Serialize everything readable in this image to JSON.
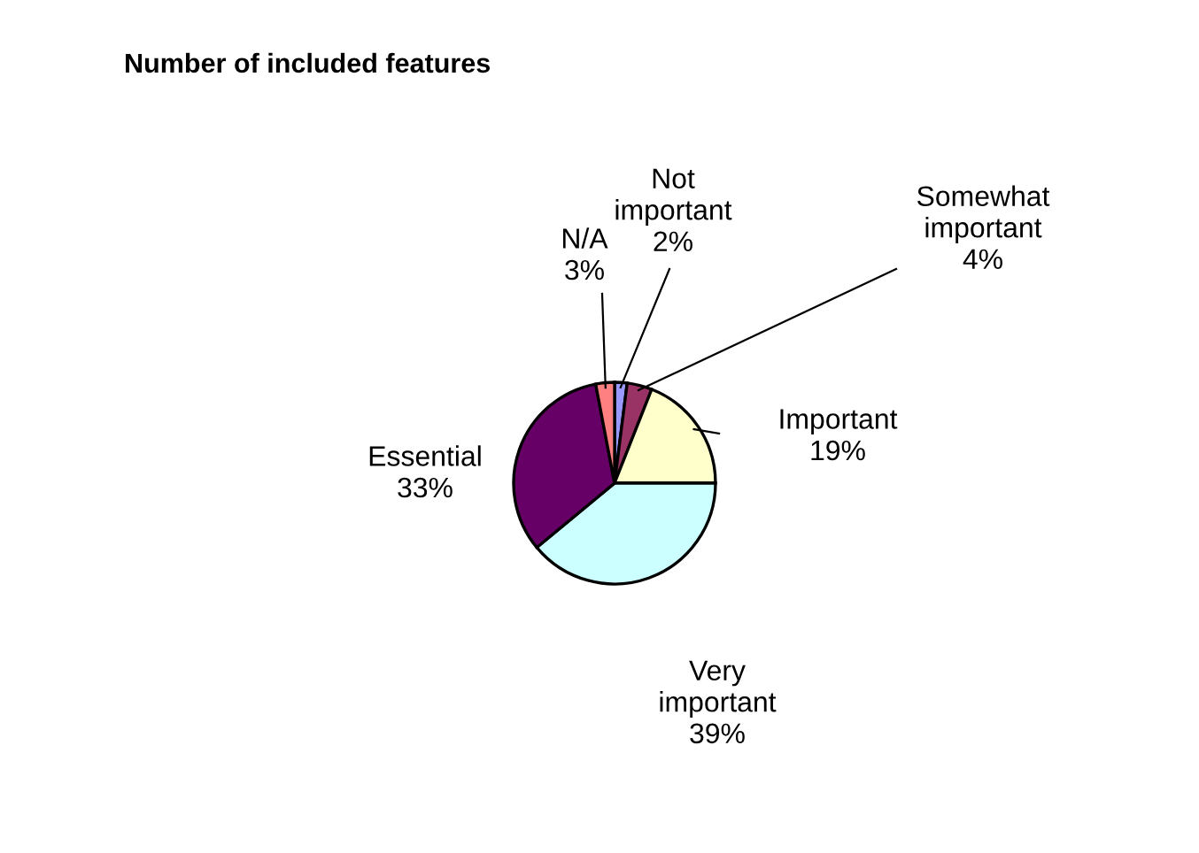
{
  "chart_data": {
    "type": "pie",
    "title": "Number of included features",
    "categories": [
      "Not important",
      "Somewhat important",
      "Important",
      "Very important",
      "Essential",
      "N/A"
    ],
    "values": [
      2,
      4,
      19,
      39,
      33,
      3
    ],
    "colors": [
      "#9999ff",
      "#993366",
      "#ffffcc",
      "#ccffff",
      "#660066",
      "#ff8080"
    ],
    "value_labels": [
      "2%",
      "4%",
      "19%",
      "39%",
      "33%",
      "3%"
    ]
  }
}
